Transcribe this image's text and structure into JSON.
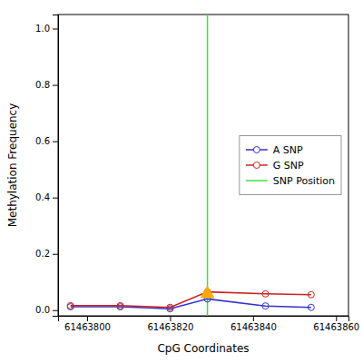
{
  "chart_data": {
    "type": "line",
    "xlabel": "CpG Coordinates",
    "ylabel": "Methylation Frequency",
    "x": [
      61463796,
      61463808,
      61463820,
      61463829,
      61463843,
      61463854
    ],
    "series": [
      {
        "name": "A SNP",
        "color": "#3333cc",
        "marker": "circle",
        "values": [
          0.012,
          0.012,
          0.005,
          0.04,
          0.015,
          0.01
        ]
      },
      {
        "name": "G SNP",
        "color": "#cc2222",
        "marker": "circle",
        "values": [
          0.016,
          0.016,
          0.01,
          0.065,
          0.058,
          0.055
        ]
      }
    ],
    "snp_line": {
      "name": "SNP Position",
      "x": 61463829,
      "color": "#44dd44"
    },
    "snp_marker": {
      "x": 61463829,
      "y": 0.058,
      "color": "#ffaa00",
      "marker": "triangle"
    },
    "xlim": [
      61463793,
      61463863
    ],
    "ylim": [
      -0.02,
      1.05
    ],
    "xticks": [
      61463800,
      61463820,
      61463840,
      61463860
    ],
    "yticks": [
      {
        "value": 0.0,
        "label": "0.0"
      },
      0.2,
      0.4,
      0.6,
      0.8,
      {
        "value": 1.0,
        "label": "1.0"
      }
    ],
    "grid": false,
    "legend": "center right"
  }
}
